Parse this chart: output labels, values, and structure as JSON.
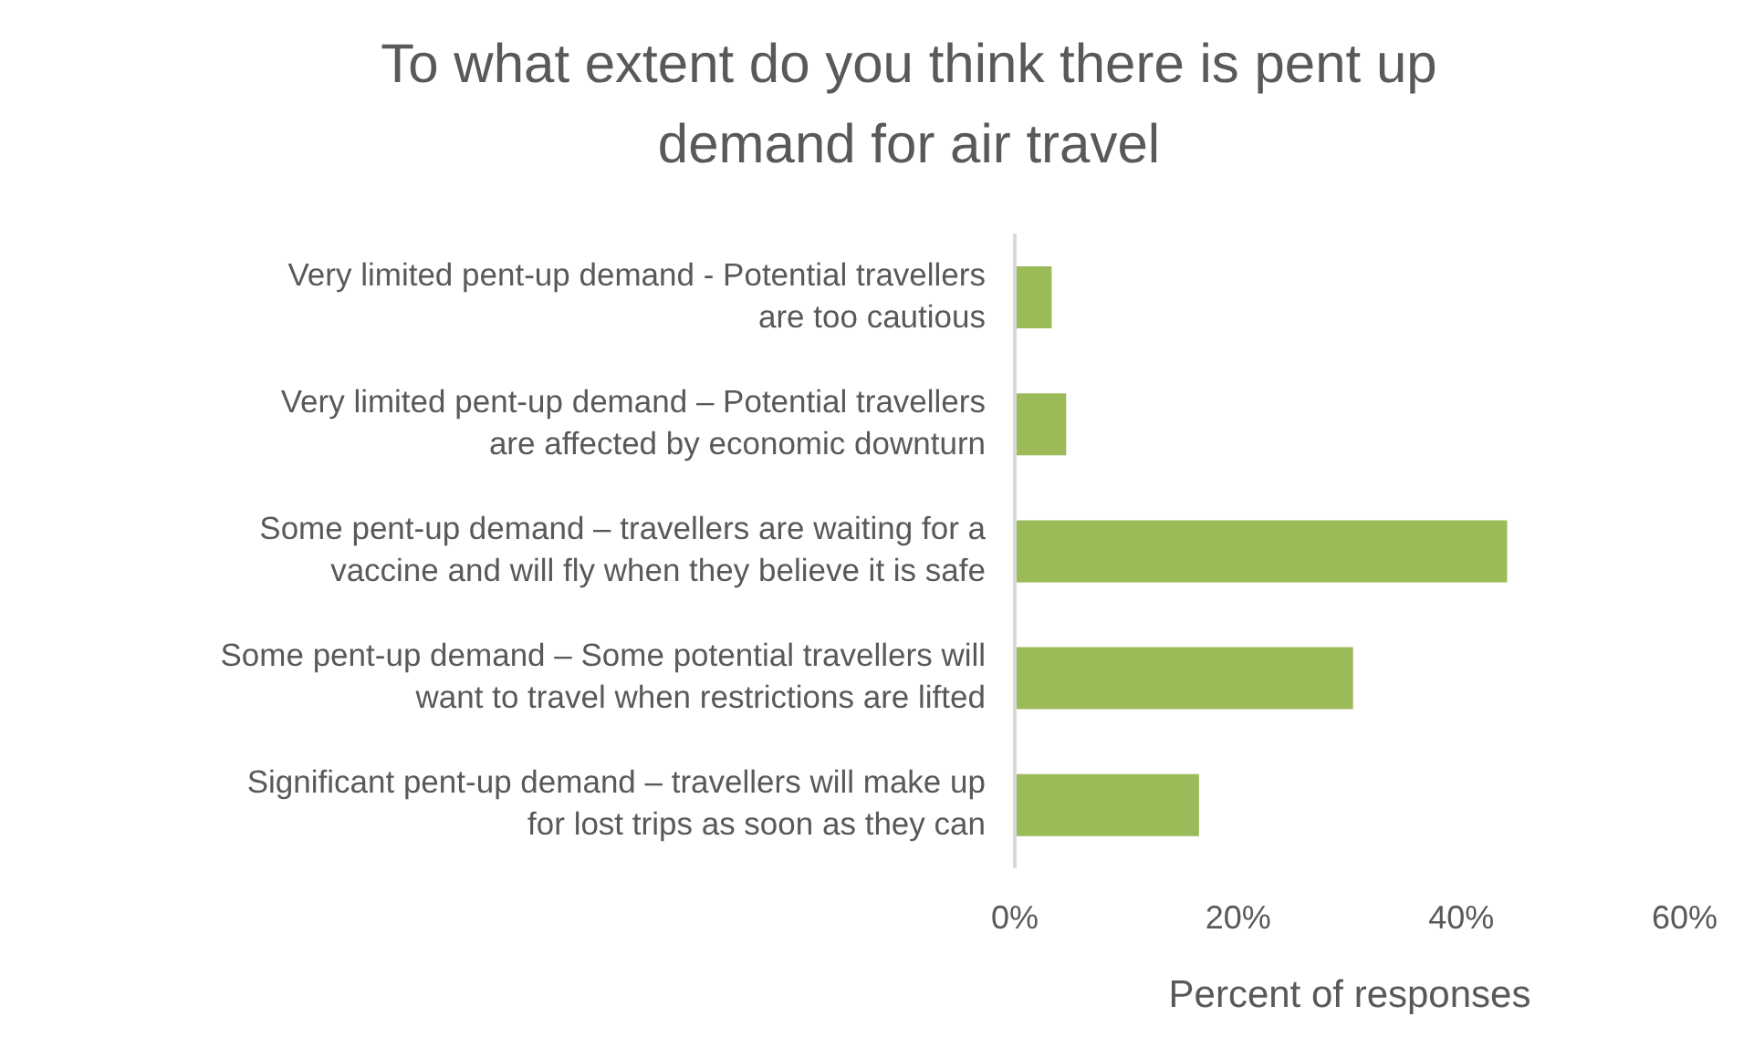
{
  "chart_data": {
    "type": "bar",
    "orientation": "horizontal",
    "title": "To what extent do you think there is pent up demand for air travel",
    "xlabel": "Percent of responses",
    "categories": [
      "Very limited pent-up demand - Potential travellers are too cautious",
      "Very limited pent-up demand – Potential travellers are affected by economic downturn",
      "Some pent-up demand – travellers are waiting for a vaccine and will fly when they believe it is safe",
      "Some pent-up demand – Some potential travellers will want to travel when restrictions are lifted",
      "Significant pent-up demand – travellers will make up for lost trips as soon as they can"
    ],
    "values": [
      3.3,
      4.6,
      44.1,
      30.3,
      16.5
    ],
    "color": "#9bbb59",
    "xlim": [
      0,
      60
    ],
    "xticks": [
      {
        "value": 0,
        "label": "0%"
      },
      {
        "value": 20,
        "label": "20%"
      },
      {
        "value": 40,
        "label": "40%"
      },
      {
        "value": 60,
        "label": "60%"
      }
    ],
    "grid": false,
    "legend": false
  }
}
